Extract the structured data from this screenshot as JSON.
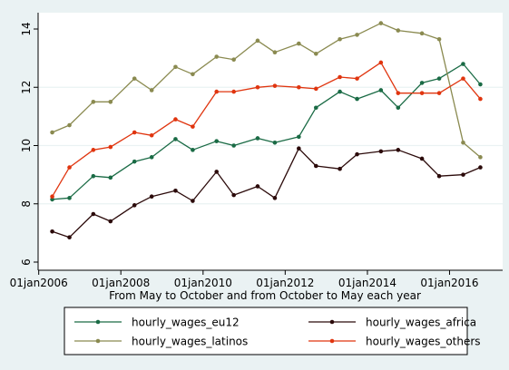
{
  "chart_data": {
    "type": "line",
    "title": "",
    "xlabel": "From May to October and from October to May each year",
    "ylabel": "",
    "xlim": [
      "2006-03-01",
      "2016-12-01"
    ],
    "ylim": [
      6,
      14
    ],
    "y_ticks": [
      6,
      8,
      10,
      12,
      14
    ],
    "x_ticks": [
      {
        "date": "2006-01-01",
        "label": "01jan2006"
      },
      {
        "date": "2008-01-01",
        "label": "01jan2008"
      },
      {
        "date": "2010-01-01",
        "label": "01jan2010"
      },
      {
        "date": "2012-01-01",
        "label": "01jan2012"
      },
      {
        "date": "2014-01-01",
        "label": "01jan2014"
      },
      {
        "date": "2016-01-01",
        "label": "01jan2016"
      }
    ],
    "x": [
      "2006-05-01",
      "2006-10-01",
      "2007-05-01",
      "2007-10-01",
      "2008-05-01",
      "2008-10-01",
      "2009-05-01",
      "2009-10-01",
      "2010-05-01",
      "2010-10-01",
      "2011-05-01",
      "2011-10-01",
      "2012-05-01",
      "2012-10-01",
      "2013-05-01",
      "2013-10-01",
      "2014-05-01",
      "2014-10-01",
      "2015-05-01",
      "2015-10-01",
      "2016-05-01",
      "2016-10-01"
    ],
    "grid": "horizontal",
    "legend_position": "bottom",
    "series": [
      {
        "name": "hourly_wages_eu12",
        "color": "#1a6b45",
        "values": [
          8.15,
          8.2,
          8.95,
          8.9,
          9.45,
          9.6,
          10.22,
          9.85,
          10.15,
          10.0,
          10.25,
          10.1,
          10.3,
          11.3,
          11.85,
          11.6,
          11.9,
          11.3,
          12.15,
          12.3,
          12.8,
          12.1
        ]
      },
      {
        "name": "hourly_wages_africa",
        "color": "#2b0a0a",
        "values": [
          7.05,
          6.85,
          7.65,
          7.4,
          7.95,
          8.25,
          8.45,
          8.1,
          9.1,
          8.3,
          8.6,
          8.2,
          9.9,
          9.3,
          9.2,
          9.7,
          9.8,
          9.85,
          9.55,
          8.95,
          9.0,
          9.25
        ]
      },
      {
        "name": "hourly_wages_latinos",
        "color": "#8a8a50",
        "values": [
          10.45,
          10.7,
          11.5,
          11.5,
          12.3,
          11.9,
          12.7,
          12.45,
          13.05,
          12.95,
          13.6,
          13.2,
          13.5,
          13.15,
          13.65,
          13.8,
          14.2,
          13.95,
          13.85,
          13.65,
          10.1,
          9.6
        ]
      },
      {
        "name": "hourly_wages_others",
        "color": "#e0350f",
        "values": [
          8.25,
          9.25,
          9.85,
          9.95,
          10.45,
          10.35,
          10.9,
          10.65,
          11.85,
          11.85,
          12.0,
          12.05,
          12.0,
          11.95,
          12.35,
          12.3,
          12.85,
          11.8,
          11.8,
          11.8,
          12.3,
          11.6
        ]
      }
    ]
  }
}
